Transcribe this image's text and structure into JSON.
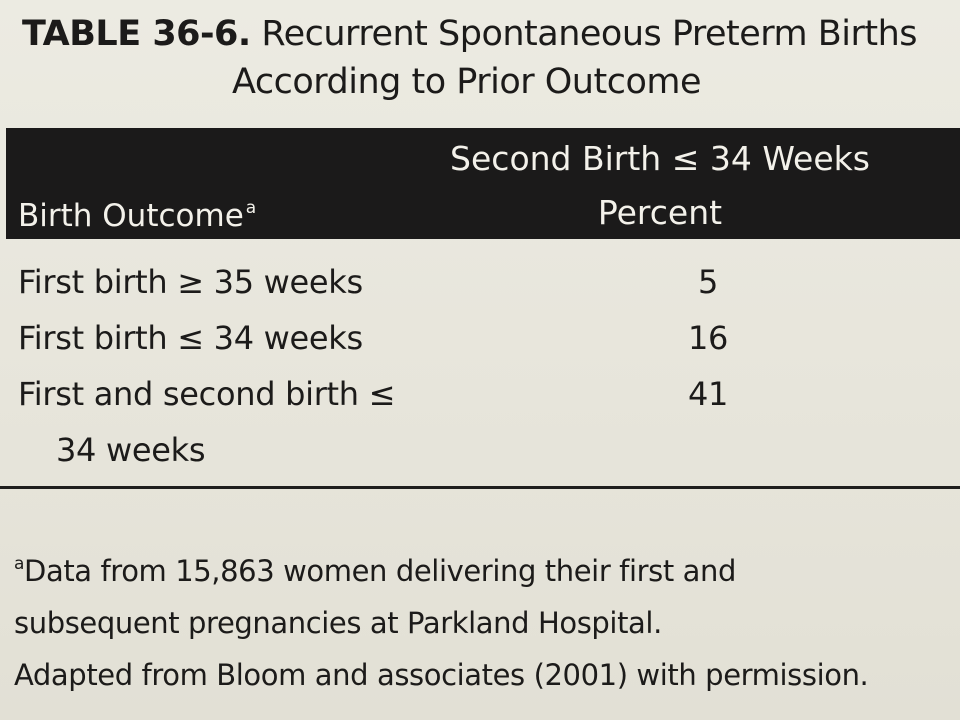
{
  "table": {
    "number_label": "TABLE 36-6.",
    "title_line1": "Recurrent Spontaneous Preterm Births",
    "title_line2": "According to Prior Outcome",
    "col_left_header": "Birth Outcome",
    "col_left_marker": "a",
    "col_right_header": "Second Birth ≤ 34 Weeks",
    "col_right_unit": "Percent",
    "rows": [
      {
        "outcome": "First birth ≥ 35 weeks",
        "percent": "5"
      },
      {
        "outcome": "First birth ≤ 34 weeks",
        "percent": "16"
      },
      {
        "outcome_line1": "First and second birth ≤",
        "outcome_line2": "34 weeks",
        "percent": "41"
      }
    ]
  },
  "footnote": {
    "marker": "a",
    "line1": "Data from 15,863 women delivering their first and",
    "line2": "subsequent pregnancies at Parkland Hospital.",
    "source": "Adapted from Bloom and associates (2001) with permission."
  }
}
